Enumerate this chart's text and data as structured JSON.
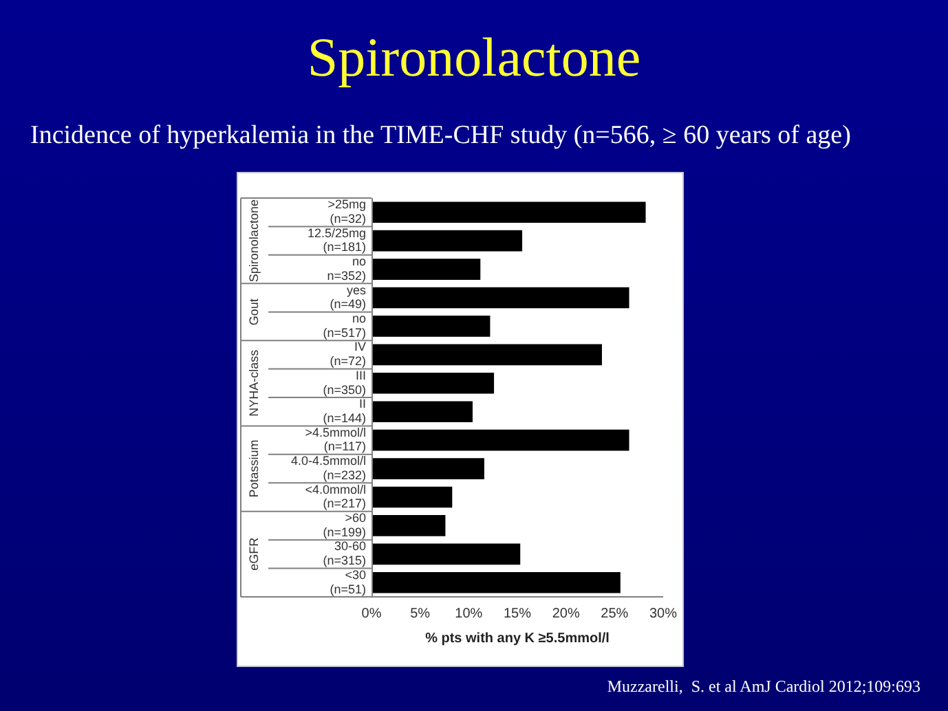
{
  "chart_data": {
    "type": "bar",
    "orientation": "horizontal",
    "title": "Spironolactone",
    "subtitle": "Incidence of hyperkalemia in the TIME-CHF study (n=566, ≥ 60 years of age)",
    "xlabel": "% pts with any K ≥5.5mmol/l",
    "categories": [
      ">25mg\n(n=32)",
      "12.5/25mg\n(n=181)",
      "no\nn=352)",
      "yes\n(n=49)",
      "no\n(n=517)",
      "IV\n(n=72)",
      "III\n(n=350)",
      "II\n(n=144)",
      ">4.5mmol/l\n(n=117)",
      "4.0-4.5mmol/l\n(n=232)",
      "<4.0mmol/l\n(n=217)",
      ">60\n(n=199)",
      "30-60\n(n=315)",
      "<30\n(n=51)"
    ],
    "values": [
      28.2,
      15.5,
      11.2,
      26.5,
      12.2,
      23.7,
      12.6,
      10.4,
      26.5,
      11.6,
      8.3,
      7.6,
      15.3,
      25.6
    ],
    "color": "#000000",
    "xlim": [
      0,
      30
    ],
    "xticks": [
      {
        "value": 0,
        "label": "0%"
      },
      {
        "value": 5,
        "label": "5%"
      },
      {
        "value": 10,
        "label": "10%"
      },
      {
        "value": 15,
        "label": "15%"
      },
      {
        "value": 20,
        "label": "20%"
      },
      {
        "value": 25,
        "label": "25%"
      },
      {
        "value": 30,
        "label": "30%"
      }
    ],
    "grid": false,
    "legend": false,
    "annotations": [
      "Spironolactone",
      "Gout",
      "NYHA-class",
      "Potassium",
      "eGFR",
      "Muzzarelli,  S. et al AmJ Cardiol 2012;109:693"
    ]
  }
}
